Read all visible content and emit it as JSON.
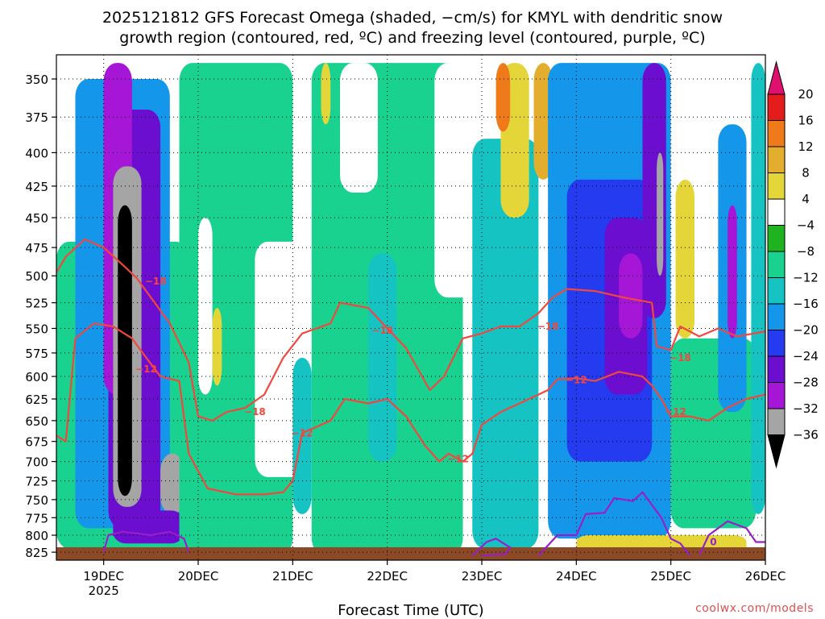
{
  "chart_data": {
    "type": "heatmap",
    "title_line1": "2025121812 GFS Forecast Omega (shaded, −cm/s) for KMYL with dendritic snow",
    "title_line2": "growth region (contoured, red, ºC) and freezing level (contoured, purple, ºC)",
    "xlabel": "Forecast Time (UTC)",
    "x_ticks": [
      "19DEC",
      "20DEC",
      "21DEC",
      "22DEC",
      "23DEC",
      "24DEC",
      "25DEC",
      "26DEC"
    ],
    "x_year_label": "2025",
    "y_ticks": [
      350,
      375,
      400,
      425,
      450,
      475,
      500,
      525,
      550,
      575,
      600,
      625,
      650,
      675,
      700,
      725,
      750,
      775,
      800,
      825
    ],
    "x_range_days": [
      18.5,
      26.0
    ],
    "y_range_mb": [
      335,
      837
    ],
    "y_scale": "log-pressure",
    "grid": "dotted",
    "colorbar": {
      "ticks": [
        "20",
        "16",
        "12",
        "8",
        "4",
        "−4",
        "−8",
        "−12",
        "−16",
        "−20",
        "−24",
        "−28",
        "−32",
        "−36"
      ],
      "colors": [
        "#e0116e",
        "#e41c1c",
        "#ef7a1a",
        "#e3ad2d",
        "#e4d639",
        "#ffffff",
        "#1fb41f",
        "#19d28f",
        "#16c3c3",
        "#1497ea",
        "#243bf0",
        "#6b0ed0",
        "#a616d6",
        "#a5a5a5",
        "#000000"
      ]
    },
    "shaded_regions": [
      {
        "t0": 18.5,
        "t1": 19.9,
        "p0": 470,
        "p1": 820,
        "v": -10
      },
      {
        "t0": 18.7,
        "t1": 19.7,
        "p0": 350,
        "p1": 790,
        "v": -18
      },
      {
        "t0": 19.05,
        "t1": 19.6,
        "p0": 370,
        "p1": 790,
        "v": -26
      },
      {
        "t0": 19.0,
        "t1": 19.3,
        "p0": 340,
        "p1": 620,
        "v": -30
      },
      {
        "t0": 19.1,
        "t1": 19.4,
        "p0": 410,
        "p1": 760,
        "v": -34
      },
      {
        "t0": 19.15,
        "t1": 19.3,
        "p0": 440,
        "p1": 745,
        "v": -38
      },
      {
        "t0": 19.6,
        "t1": 19.85,
        "p0": 690,
        "p1": 770,
        "v": -34
      },
      {
        "t0": 19.1,
        "t1": 19.85,
        "p0": 765,
        "p1": 812,
        "v": -26
      },
      {
        "t0": 19.8,
        "t1": 21.0,
        "p0": 340,
        "p1": 830,
        "v": -8
      },
      {
        "t0": 20.0,
        "t1": 20.15,
        "p0": 450,
        "p1": 620,
        "v": 0
      },
      {
        "t0": 20.15,
        "t1": 20.25,
        "p0": 530,
        "p1": 610,
        "v": 6
      },
      {
        "t0": 20.6,
        "t1": 21.3,
        "p0": 470,
        "p1": 720,
        "v": 0
      },
      {
        "t0": 21.2,
        "t1": 22.8,
        "p0": 340,
        "p1": 830,
        "v": -9
      },
      {
        "t0": 21.0,
        "t1": 21.2,
        "p0": 580,
        "p1": 770,
        "v": -14
      },
      {
        "t0": 21.8,
        "t1": 22.1,
        "p0": 480,
        "p1": 700,
        "v": -14
      },
      {
        "t0": 21.5,
        "t1": 21.9,
        "p0": 340,
        "p1": 430,
        "v": 0
      },
      {
        "t0": 21.3,
        "t1": 21.4,
        "p0": 340,
        "p1": 380,
        "v": 6
      },
      {
        "t0": 22.55,
        "t1": 22.7,
        "p0": 340,
        "p1": 380,
        "v": 6
      },
      {
        "t0": 22.5,
        "t1": 23.1,
        "p0": 340,
        "p1": 520,
        "v": 0
      },
      {
        "t0": 22.9,
        "t1": 23.6,
        "p0": 390,
        "p1": 820,
        "v": -12
      },
      {
        "t0": 23.2,
        "t1": 23.5,
        "p0": 340,
        "p1": 450,
        "v": 6
      },
      {
        "t0": 23.15,
        "t1": 23.3,
        "p0": 340,
        "p1": 385,
        "v": 14
      },
      {
        "t0": 23.55,
        "t1": 23.75,
        "p0": 340,
        "p1": 420,
        "v": 10
      },
      {
        "t0": 23.7,
        "t1": 25.0,
        "p0": 340,
        "p1": 805,
        "v": -16
      },
      {
        "t0": 23.9,
        "t1": 24.8,
        "p0": 420,
        "p1": 700,
        "v": -20
      },
      {
        "t0": 24.3,
        "t1": 24.75,
        "p0": 450,
        "p1": 620,
        "v": -24
      },
      {
        "t0": 24.45,
        "t1": 24.7,
        "p0": 480,
        "p1": 560,
        "v": -28
      },
      {
        "t0": 24.7,
        "t1": 24.95,
        "p0": 340,
        "p1": 540,
        "v": -26
      },
      {
        "t0": 24.85,
        "t1": 24.92,
        "p0": 400,
        "p1": 500,
        "v": -34
      },
      {
        "t0": 25.0,
        "t1": 25.3,
        "p0": 340,
        "p1": 560,
        "v": 0
      },
      {
        "t0": 25.05,
        "t1": 25.25,
        "p0": 420,
        "p1": 560,
        "v": 6
      },
      {
        "t0": 25.0,
        "t1": 25.9,
        "p0": 560,
        "p1": 790,
        "v": -9
      },
      {
        "t0": 25.5,
        "t1": 25.8,
        "p0": 380,
        "p1": 640,
        "v": -18
      },
      {
        "t0": 25.6,
        "t1": 25.7,
        "p0": 440,
        "p1": 560,
        "v": -28
      },
      {
        "t0": 25.85,
        "t1": 26.0,
        "p0": 340,
        "p1": 770,
        "v": -12
      },
      {
        "t0": 24.0,
        "t1": 25.8,
        "p0": 800,
        "p1": 830,
        "v": 6
      }
    ],
    "dgz_contours": [
      {
        "label": "−18",
        "points": [
          [
            18.5,
            497
          ],
          [
            18.6,
            483
          ],
          [
            18.8,
            468
          ],
          [
            19.0,
            475
          ],
          [
            19.2,
            490
          ],
          [
            19.35,
            502
          ],
          [
            19.5,
            520
          ],
          [
            19.7,
            545
          ],
          [
            19.9,
            585
          ],
          [
            20.0,
            645
          ],
          [
            20.15,
            650
          ],
          [
            20.3,
            640
          ],
          [
            20.5,
            635
          ],
          [
            20.7,
            620
          ],
          [
            20.9,
            580
          ],
          [
            21.1,
            555
          ],
          [
            21.4,
            545
          ],
          [
            21.5,
            525
          ],
          [
            21.8,
            530
          ],
          [
            22.0,
            550
          ],
          [
            22.2,
            570
          ],
          [
            22.45,
            615
          ],
          [
            22.6,
            600
          ],
          [
            22.8,
            560
          ],
          [
            23.0,
            555
          ],
          [
            23.2,
            548
          ],
          [
            23.4,
            548
          ],
          [
            23.6,
            535
          ],
          [
            23.75,
            520
          ],
          [
            23.9,
            512
          ],
          [
            24.2,
            514
          ],
          [
            24.5,
            520
          ],
          [
            24.8,
            525
          ],
          [
            24.85,
            568
          ],
          [
            25.0,
            572
          ],
          [
            25.1,
            548
          ],
          [
            25.3,
            558
          ],
          [
            25.5,
            550
          ],
          [
            25.7,
            558
          ],
          [
            26.0,
            553
          ]
        ],
        "labels": [
          [
            19.55,
            505
          ],
          [
            20.6,
            640
          ],
          [
            21.95,
            552
          ],
          [
            23.7,
            548
          ],
          [
            25.1,
            580
          ]
        ]
      },
      {
        "label": "−12",
        "points": [
          [
            18.5,
            668
          ],
          [
            18.6,
            675
          ],
          [
            18.7,
            560
          ],
          [
            18.9,
            545
          ],
          [
            19.1,
            548
          ],
          [
            19.3,
            560
          ],
          [
            19.45,
            580
          ],
          [
            19.6,
            600
          ],
          [
            19.8,
            605
          ],
          [
            19.9,
            690
          ],
          [
            20.1,
            735
          ],
          [
            20.4,
            743
          ],
          [
            20.7,
            743
          ],
          [
            20.9,
            740
          ],
          [
            21.0,
            725
          ],
          [
            21.1,
            665
          ],
          [
            21.4,
            650
          ],
          [
            21.55,
            625
          ],
          [
            21.8,
            630
          ],
          [
            22.0,
            625
          ],
          [
            22.2,
            645
          ],
          [
            22.4,
            680
          ],
          [
            22.55,
            700
          ],
          [
            22.65,
            690
          ],
          [
            22.8,
            700
          ],
          [
            22.9,
            690
          ],
          [
            23.0,
            655
          ],
          [
            23.2,
            640
          ],
          [
            23.4,
            630
          ],
          [
            23.7,
            615
          ],
          [
            23.8,
            603
          ],
          [
            24.0,
            602
          ],
          [
            24.2,
            605
          ],
          [
            24.45,
            595
          ],
          [
            24.7,
            600
          ],
          [
            24.8,
            610
          ],
          [
            24.9,
            625
          ],
          [
            25.0,
            645
          ],
          [
            25.2,
            645
          ],
          [
            25.4,
            650
          ],
          [
            25.6,
            635
          ],
          [
            25.8,
            625
          ],
          [
            26.0,
            620
          ]
        ],
        "labels": [
          [
            19.45,
            592
          ],
          [
            21.1,
            665
          ],
          [
            22.75,
            697
          ],
          [
            24.0,
            604
          ],
          [
            25.05,
            640
          ]
        ]
      }
    ],
    "freezing_contours": [
      {
        "label": "0",
        "points": [
          [
            19.0,
            825
          ],
          [
            19.05,
            800
          ],
          [
            19.2,
            795
          ],
          [
            19.5,
            800
          ],
          [
            19.7,
            795
          ],
          [
            19.85,
            805
          ],
          [
            19.9,
            825
          ]
        ]
      },
      {
        "label": "0",
        "points": [
          [
            22.9,
            830
          ],
          [
            23.05,
            810
          ],
          [
            23.15,
            805
          ],
          [
            23.3,
            818
          ],
          [
            23.25,
            828
          ],
          [
            23.0,
            830
          ]
        ]
      },
      {
        "label": "0",
        "points": [
          [
            23.6,
            830
          ],
          [
            23.8,
            800
          ],
          [
            24.0,
            800
          ],
          [
            24.1,
            770
          ],
          [
            24.3,
            768
          ],
          [
            24.4,
            748
          ],
          [
            24.6,
            752
          ],
          [
            24.7,
            740
          ],
          [
            24.9,
            775
          ],
          [
            25.0,
            805
          ],
          [
            25.1,
            812
          ],
          [
            25.2,
            830
          ]
        ]
      },
      {
        "label": "0",
        "points": [
          [
            25.3,
            830
          ],
          [
            25.4,
            800
          ],
          [
            25.6,
            780
          ],
          [
            25.8,
            790
          ],
          [
            25.9,
            810
          ],
          [
            26.0,
            810
          ]
        ],
        "labels": [
          [
            25.45,
            810
          ]
        ]
      }
    ],
    "credit": "coolwx.com/models"
  }
}
